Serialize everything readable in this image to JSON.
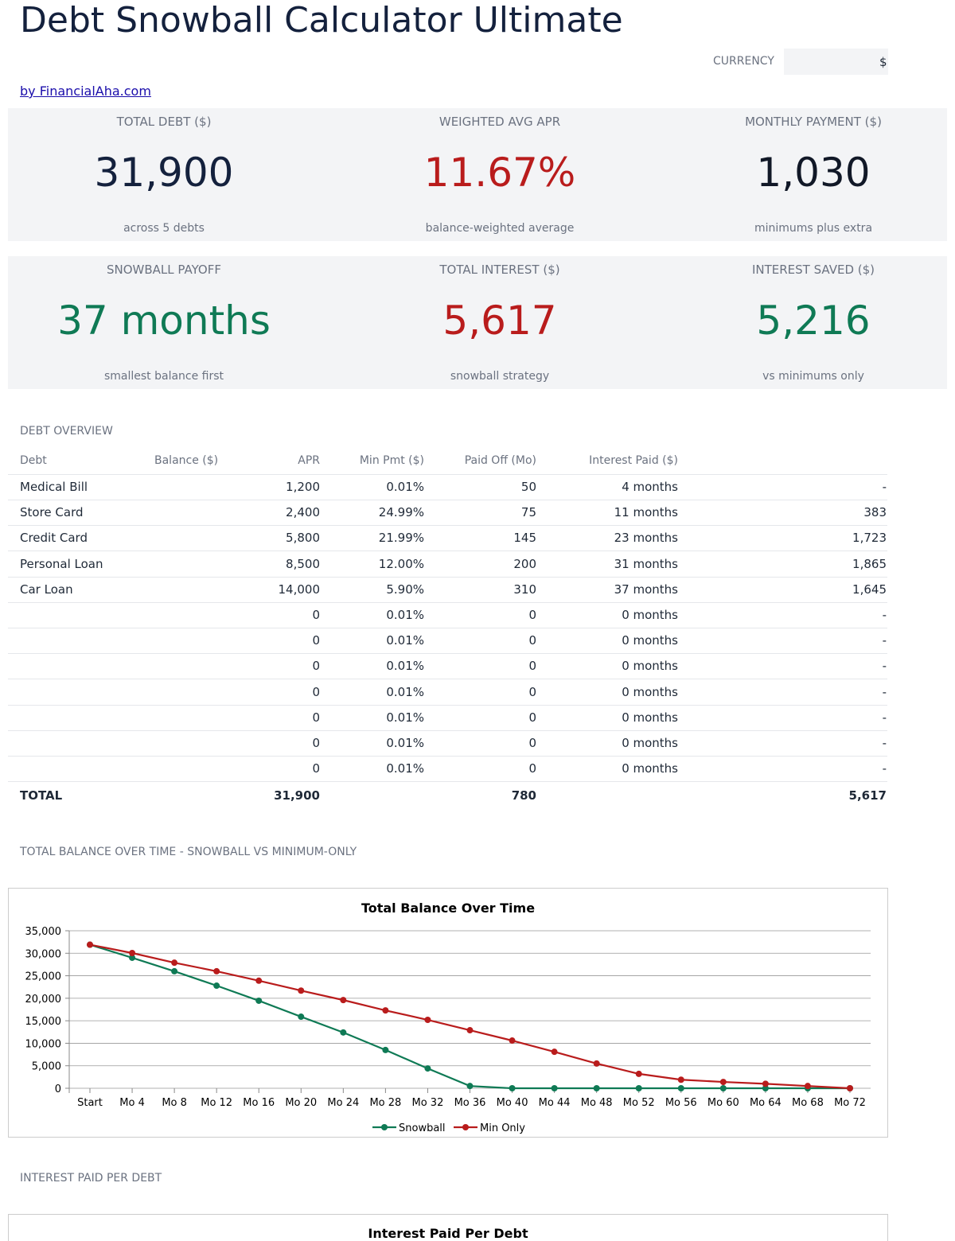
{
  "header": {
    "title": "Debt Snowball Calculator Ultimate",
    "currency_label": "CURRENCY",
    "currency_value": "$",
    "link": "by FinancialAha.com"
  },
  "kpis": [
    {
      "label": "TOTAL DEBT ($)",
      "value": "31,900",
      "note": "across 5 debts",
      "color": "#14213d"
    },
    {
      "label": "WEIGHTED AVG APR",
      "value": "11.67%",
      "note": "balance-weighted average",
      "color": "#b91c1c"
    },
    {
      "label": "MONTHLY PAYMENT ($)",
      "value": "1,030",
      "note": "minimums plus extra",
      "color": "#111827"
    },
    {
      "label": "SNOWBALL PAYOFF",
      "value": "37 months",
      "note": "smallest balance first",
      "color": "#0f7a55"
    },
    {
      "label": "TOTAL INTEREST ($)",
      "value": "5,617",
      "note": "snowball strategy",
      "color": "#b91c1c"
    },
    {
      "label": "INTEREST SAVED ($)",
      "value": "5,216",
      "note": "vs minimums only",
      "color": "#0f7a55"
    }
  ],
  "debt_overview": {
    "title": "DEBT OVERVIEW",
    "columns": [
      "Debt",
      "Balance ($)",
      "APR",
      "Min Pmt ($)",
      "Paid Off (Mo)",
      "Interest Paid ($)"
    ],
    "rows": [
      [
        "Medical Bill",
        "1,200",
        "0.01%",
        "50",
        "4 months",
        "-"
      ],
      [
        "Store Card",
        "2,400",
        "24.99%",
        "75",
        "11 months",
        "383"
      ],
      [
        "Credit Card",
        "5,800",
        "21.99%",
        "145",
        "23 months",
        "1,723"
      ],
      [
        "Personal Loan",
        "8,500",
        "12.00%",
        "200",
        "31 months",
        "1,865"
      ],
      [
        "Car Loan",
        "14,000",
        "5.90%",
        "310",
        "37 months",
        "1,645"
      ],
      [
        null,
        "0",
        "0.01%",
        "0",
        "0 months",
        "-"
      ],
      [
        null,
        "0",
        "0.01%",
        "0",
        "0 months",
        "-"
      ],
      [
        null,
        "0",
        "0.01%",
        "0",
        "0 months",
        "-"
      ],
      [
        null,
        "0",
        "0.01%",
        "0",
        "0 months",
        "-"
      ],
      [
        null,
        "0",
        "0.01%",
        "0",
        "0 months",
        "-"
      ],
      [
        null,
        "0",
        "0.01%",
        "0",
        "0 months",
        "-"
      ],
      [
        null,
        "0",
        "0.01%",
        "0",
        "0 months",
        "-"
      ]
    ],
    "total": {
      "label": "TOTAL",
      "balance": "31,900",
      "min_pmt": "780",
      "interest": "5,617"
    }
  },
  "sections": {
    "balance_chart": "TOTAL BALANCE OVER TIME - SNOWBALL VS MINIMUM-ONLY",
    "interest_chart": "INTEREST PAID PER DEBT"
  },
  "chart_data": [
    {
      "type": "line",
      "title": "Total Balance Over Time",
      "categories": [
        "Start",
        "Mo 4",
        "Mo 8",
        "Mo 12",
        "Mo 16",
        "Mo 20",
        "Mo 24",
        "Mo 28",
        "Mo 32",
        "Mo 36",
        "Mo 40",
        "Mo 44",
        "Mo 48",
        "Mo 52",
        "Mo 56",
        "Mo 60",
        "Mo 64",
        "Mo 68",
        "Mo 72"
      ],
      "series": [
        {
          "name": "Snowball",
          "color": "#0f7a55",
          "values": [
            31900,
            29000,
            26000,
            22800,
            19450,
            15900,
            12400,
            8500,
            4400,
            500,
            0,
            0,
            0,
            0,
            0,
            0,
            0,
            0,
            0
          ]
        },
        {
          "name": "Min Only",
          "color": "#b91c1c",
          "values": [
            31900,
            30050,
            27900,
            26000,
            23900,
            21700,
            19600,
            17300,
            15200,
            12900,
            10600,
            8100,
            5500,
            3200,
            1900,
            1400,
            1000,
            500,
            0
          ]
        }
      ],
      "ylim": [
        0,
        35000
      ],
      "yticks": [
        0,
        {
          "value": 5000,
          "label": "5,000"
        },
        {
          "value": 10000,
          "label": "10,000"
        },
        {
          "value": 15000,
          "label": "15,000"
        },
        {
          "value": 20000,
          "label": "20,000"
        },
        {
          "value": 25000,
          "label": "25,000"
        },
        {
          "value": 30000,
          "label": "30,000"
        },
        {
          "value": 35000,
          "label": "35,000"
        }
      ],
      "grid": true,
      "legend": "bottom"
    },
    {
      "type": "bar",
      "title": "Interest Paid Per Debt"
    }
  ]
}
